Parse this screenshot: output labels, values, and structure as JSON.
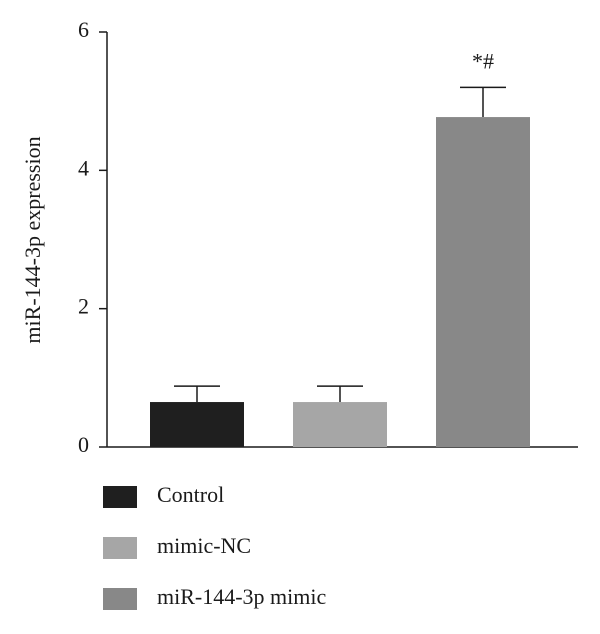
{
  "chart_data": {
    "type": "bar",
    "y_label": "miR-144-3p expression",
    "categories": [
      "Control",
      "mimic-NC",
      "miR-144-3p mimic"
    ],
    "values": [
      0.65,
      0.65,
      4.77
    ],
    "errors": [
      0.23,
      0.23,
      0.43
    ],
    "colors": [
      "#1f1f1f",
      "#a6a6a6",
      "#888888"
    ],
    "ylim": [
      0,
      6
    ],
    "yticks": [
      0,
      2,
      4,
      6
    ],
    "annotations": [
      {
        "category": "miR-144-3p mimic",
        "text": "*#"
      }
    ],
    "legend": "bottom"
  }
}
